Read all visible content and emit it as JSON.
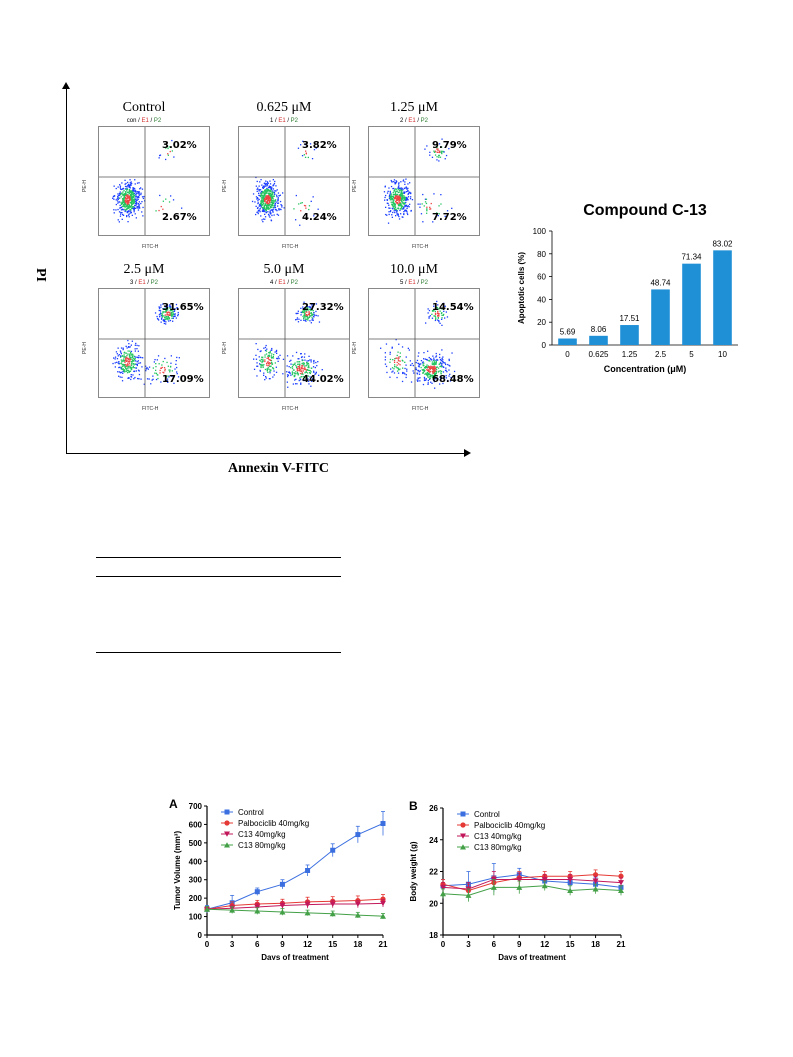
{
  "figure1": {
    "y_axis_label": "PI",
    "x_axis_label": "Annexin V-FITC",
    "panels": [
      {
        "title": "Control",
        "sample": "con",
        "e1": "E1",
        "p2": "P2",
        "upper_right": "3.02%",
        "lower_right": "2.67%"
      },
      {
        "title": "0.625 μM",
        "sample": "1",
        "e1": "E1",
        "p2": "P2",
        "upper_right": "3.82%",
        "lower_right": "4.24%"
      },
      {
        "title": "1.25 μM",
        "sample": "2",
        "e1": "E1",
        "p2": "P2",
        "upper_right": "9.79%",
        "lower_right": "7.72%"
      },
      {
        "title": "2.5 μM",
        "sample": "3",
        "e1": "E1",
        "p2": "P2",
        "upper_right": "31.65%",
        "lower_right": "17.09%"
      },
      {
        "title": "5.0 μM",
        "sample": "4",
        "e1": "E1",
        "p2": "P2",
        "upper_right": "27.32%",
        "lower_right": "44.02%"
      },
      {
        "title": "10.0 μM",
        "sample": "5",
        "e1": "E1",
        "p2": "P2",
        "upper_right": "14.54%",
        "lower_right": "68.48%"
      }
    ],
    "flow_axis": {
      "x_name": "FITC-H",
      "y_name": "PE-H"
    },
    "colors": {
      "dots_low": "#1a3dff",
      "dots_mid": "#22c55e",
      "dots_high": "#ef4444",
      "e1": "#d32f2f",
      "p2": "#2e7d32"
    }
  },
  "chart_data": [
    {
      "type": "bar",
      "title": "Compound C-13",
      "xlabel": "Concentration (μM)",
      "ylabel": "Apoptotic cells (%)",
      "categories": [
        "0",
        "0.625",
        "1.25",
        "2.5",
        "5",
        "10"
      ],
      "values": [
        5.69,
        8.06,
        17.51,
        48.74,
        71.34,
        83.02
      ],
      "value_labels": [
        "5.69",
        "8.06",
        "17.51",
        "48.74",
        "71.34",
        "83.02"
      ],
      "ylim": [
        0,
        100
      ],
      "yticks": [
        "0",
        "20",
        "40",
        "60",
        "80",
        "100"
      ],
      "color": "#1f8fd6"
    },
    {
      "type": "line",
      "panel_label": "A",
      "xlabel": "Days of treatment",
      "ylabel": "Tumor Volume (mm³)",
      "x": [
        0,
        3,
        6,
        9,
        12,
        15,
        18,
        21
      ],
      "xticks": [
        "0",
        "3",
        "6",
        "9",
        "12",
        "15",
        "18",
        "21"
      ],
      "ylim": [
        0,
        700
      ],
      "yticks": [
        "0",
        "100",
        "200",
        "300",
        "400",
        "500",
        "600",
        "700"
      ],
      "series": [
        {
          "name": "Control",
          "color": "#3b6fe0",
          "marker": "square",
          "values": [
            140,
            175,
            235,
            275,
            350,
            460,
            545,
            605
          ],
          "err": [
            20,
            40,
            20,
            25,
            30,
            35,
            45,
            65
          ]
        },
        {
          "name": "Palbociclib 40mg/kg",
          "color": "#e53935",
          "marker": "circle",
          "values": [
            140,
            160,
            168,
            172,
            180,
            183,
            187,
            195
          ],
          "err": [
            15,
            20,
            20,
            22,
            25,
            25,
            25,
            25
          ]
        },
        {
          "name": "C13 40mg/kg",
          "color": "#c2185b",
          "marker": "triangle-down",
          "values": [
            140,
            145,
            152,
            160,
            165,
            168,
            168,
            172
          ],
          "err": [
            15,
            18,
            18,
            20,
            20,
            20,
            20,
            20
          ]
        },
        {
          "name": "C13 80mg/kg",
          "color": "#43a047",
          "marker": "triangle-up",
          "values": [
            140,
            135,
            130,
            125,
            120,
            115,
            108,
            102
          ],
          "err": [
            15,
            18,
            18,
            18,
            15,
            15,
            15,
            15
          ]
        }
      ]
    },
    {
      "type": "line",
      "panel_label": "B",
      "xlabel": "Days of treatment",
      "ylabel": "Body weight (g)",
      "x": [
        0,
        3,
        6,
        9,
        12,
        15,
        18,
        21
      ],
      "xticks": [
        "0",
        "3",
        "6",
        "9",
        "12",
        "15",
        "18",
        "21"
      ],
      "ylim": [
        18,
        26
      ],
      "yticks": [
        "18",
        "20",
        "22",
        "24",
        "26"
      ],
      "series": [
        {
          "name": "Control",
          "color": "#3b6fe0",
          "marker": "square",
          "values": [
            21.1,
            21.2,
            21.6,
            21.8,
            21.4,
            21.3,
            21.2,
            21.0
          ],
          "err": [
            0.4,
            0.8,
            0.9,
            0.4,
            0.3,
            0.4,
            0.4,
            0.4
          ]
        },
        {
          "name": "Palbociclib 40mg/kg",
          "color": "#e53935",
          "marker": "circle",
          "values": [
            21.2,
            20.8,
            21.3,
            21.6,
            21.7,
            21.7,
            21.8,
            21.7
          ],
          "err": [
            0.3,
            0.4,
            0.4,
            0.4,
            0.3,
            0.3,
            0.3,
            0.3
          ]
        },
        {
          "name": "C13 40mg/kg",
          "color": "#c2185b",
          "marker": "triangle-down",
          "values": [
            21.0,
            20.9,
            21.5,
            21.5,
            21.5,
            21.5,
            21.4,
            21.3
          ],
          "err": [
            0.3,
            0.4,
            0.5,
            0.4,
            0.3,
            0.3,
            0.3,
            0.3
          ]
        },
        {
          "name": "C13 80mg/kg",
          "color": "#43a047",
          "marker": "triangle-up",
          "values": [
            20.6,
            20.5,
            21.0,
            21.0,
            21.1,
            20.8,
            20.9,
            20.8
          ],
          "err": [
            0.3,
            0.4,
            0.5,
            0.4,
            0.3,
            0.3,
            0.3,
            0.3
          ]
        }
      ]
    }
  ]
}
